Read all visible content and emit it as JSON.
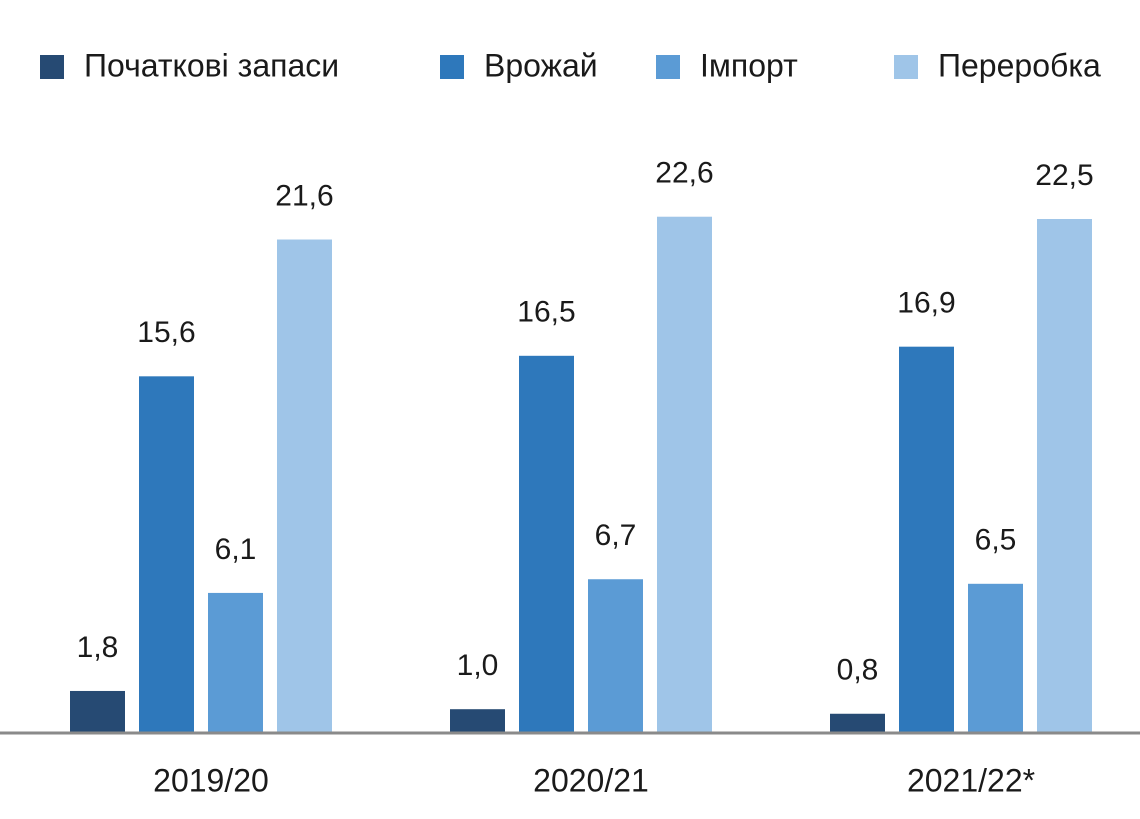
{
  "chart_data": {
    "type": "bar",
    "categories": [
      "2019/20",
      "2020/21",
      "2021/22*"
    ],
    "series": [
      {
        "name": "Початкові запаси",
        "color": "#264a73",
        "values": [
          1.8,
          1.0,
          0.8
        ],
        "value_labels": [
          "1,8",
          "1,0",
          "0,8"
        ]
      },
      {
        "name": "Врожай",
        "color": "#2e78bb",
        "values": [
          15.6,
          16.5,
          16.9
        ],
        "value_labels": [
          "15,6",
          "16,5",
          "16,9"
        ]
      },
      {
        "name": "Імпорт",
        "color": "#5b9bd5",
        "values": [
          6.1,
          6.7,
          6.5
        ],
        "value_labels": [
          "6,1",
          "6,7",
          "6,5"
        ]
      },
      {
        "name": "Переробка",
        "color": "#9fc5e8",
        "values": [
          21.6,
          22.6,
          22.5
        ],
        "value_labels": [
          "21,6",
          "22,6",
          "22,5"
        ]
      }
    ],
    "legend": "top"
  }
}
